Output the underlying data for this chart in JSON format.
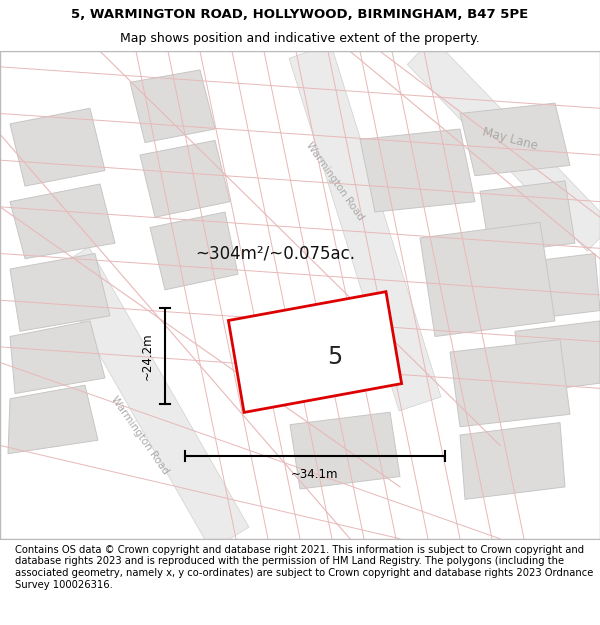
{
  "title_line1": "5, WARMINGTON ROAD, HOLLYWOOD, BIRMINGHAM, B47 5PE",
  "title_line2": "Map shows position and indicative extent of the property.",
  "footer_text": "Contains OS data © Crown copyright and database right 2021. This information is subject to Crown copyright and database rights 2023 and is reproduced with the permission of HM Land Registry. The polygons (including the associated geometry, namely x, y co-ordinates) are subject to Crown copyright and database rights 2023 Ordnance Survey 100026316.",
  "map_bg": "#f2f0ed",
  "block_fill": "#dedcda",
  "block_edge": "#c8c6c4",
  "road_line_color": "#e8b8b8",
  "property_outline_color": "#dd0000",
  "property_fill": "#ffffff",
  "property_label": "5",
  "area_label": "~304m²/~0.075ac.",
  "dim_width": "~34.1m",
  "dim_height": "~24.2m",
  "road_label_upper": "Warmington Road",
  "road_label_lower": "Warmington Road",
  "road_label_right": "May Lane",
  "title_fontsize": 9.5,
  "subtitle_fontsize": 9,
  "footer_fontsize": 7.2,
  "map_border_color": "#bbbbbb",
  "road_fill": "#ebebeb",
  "road_edge": "#d0d0d0"
}
